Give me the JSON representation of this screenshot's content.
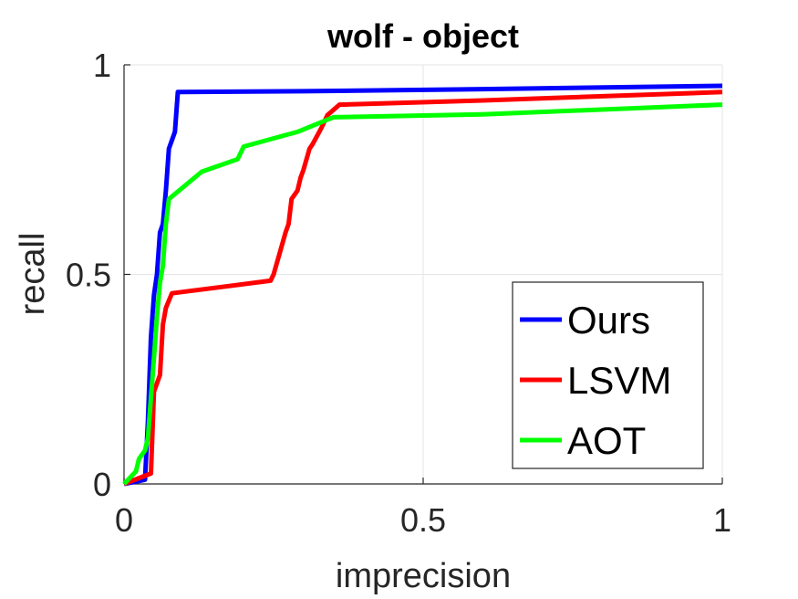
{
  "chart_data": {
    "type": "line",
    "title": "wolf - object",
    "xlabel": "imprecision",
    "ylabel": "recall",
    "xlim": [
      0,
      1
    ],
    "ylim": [
      0,
      1
    ],
    "xticks": [
      0,
      0.5,
      1
    ],
    "yticks": [
      0,
      0.5,
      1
    ],
    "xtick_labels": [
      "0",
      "0.5",
      "1"
    ],
    "ytick_labels": [
      "0",
      "0.5",
      "1"
    ],
    "grid": true,
    "legend_position": "bottom-right",
    "series": [
      {
        "name": "Ours",
        "color": "#0000ff",
        "x": [
          0,
          0.035,
          0.04,
          0.045,
          0.05,
          0.055,
          0.06,
          0.065,
          0.07,
          0.075,
          0.08,
          0.085,
          0.09,
          0.095,
          0.3,
          0.6,
          1.0
        ],
        "y": [
          0,
          0.01,
          0.15,
          0.35,
          0.45,
          0.5,
          0.6,
          0.62,
          0.7,
          0.8,
          0.82,
          0.84,
          0.935,
          0.935,
          0.937,
          0.942,
          0.95
        ]
      },
      {
        "name": "LSVM",
        "color": "#ff0000",
        "x": [
          0,
          0.045,
          0.05,
          0.06,
          0.065,
          0.07,
          0.08,
          0.245,
          0.25,
          0.26,
          0.27,
          0.275,
          0.28,
          0.29,
          0.295,
          0.3,
          0.31,
          0.315,
          0.33,
          0.34,
          0.36,
          0.6,
          1.0
        ],
        "y": [
          0,
          0.025,
          0.22,
          0.26,
          0.38,
          0.42,
          0.455,
          0.485,
          0.5,
          0.55,
          0.6,
          0.62,
          0.68,
          0.7,
          0.73,
          0.75,
          0.8,
          0.81,
          0.85,
          0.88,
          0.905,
          0.915,
          0.935
        ]
      },
      {
        "name": "AOT",
        "color": "#00ff00",
        "x": [
          0,
          0.02,
          0.025,
          0.035,
          0.04,
          0.05,
          0.055,
          0.06,
          0.065,
          0.07,
          0.075,
          0.13,
          0.19,
          0.2,
          0.29,
          0.35,
          0.6,
          1.0
        ],
        "y": [
          0,
          0.03,
          0.06,
          0.08,
          0.11,
          0.3,
          0.4,
          0.48,
          0.52,
          0.62,
          0.68,
          0.745,
          0.775,
          0.805,
          0.84,
          0.875,
          0.882,
          0.905
        ]
      }
    ]
  }
}
